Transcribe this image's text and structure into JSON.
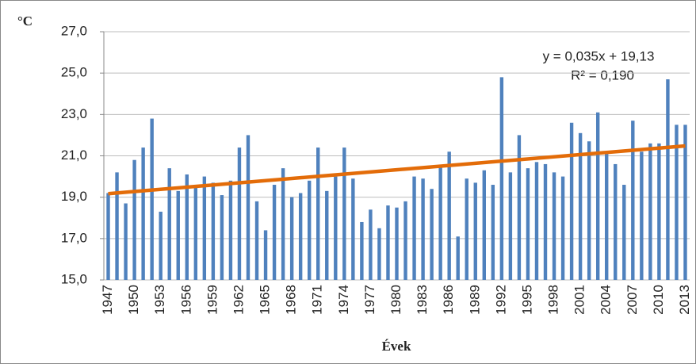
{
  "chart_data": {
    "type": "bar",
    "y_axis_label": "°C",
    "x_axis_label": "Évek",
    "annotations": [
      "y = 0,035x + 19,13",
      "R² = 0,190"
    ],
    "categories": [
      "1947",
      null,
      null,
      "1950",
      null,
      null,
      "1953",
      null,
      null,
      "1956",
      null,
      null,
      "1959",
      null,
      null,
      "1962",
      null,
      null,
      "1965",
      null,
      null,
      "1968",
      null,
      null,
      "1971",
      null,
      null,
      "1974",
      null,
      null,
      "1977",
      null,
      null,
      "1980",
      null,
      null,
      "1983",
      null,
      null,
      "1986",
      null,
      null,
      "1989",
      null,
      null,
      "1992",
      null,
      null,
      "1995",
      null,
      null,
      "1998",
      null,
      null,
      "2001",
      null,
      null,
      "2004",
      null,
      null,
      "2007",
      null,
      null,
      "2010",
      null,
      null,
      "2013"
    ],
    "values": [
      19.2,
      20.2,
      18.7,
      20.8,
      21.4,
      22.8,
      18.3,
      20.4,
      19.3,
      20.1,
      19.5,
      20.0,
      19.7,
      19.1,
      19.8,
      21.4,
      22.0,
      18.8,
      17.4,
      19.6,
      20.4,
      19.0,
      19.2,
      19.8,
      21.4,
      19.3,
      20.0,
      21.4,
      19.9,
      17.8,
      18.4,
      17.5,
      18.6,
      18.5,
      18.8,
      20.0,
      19.9,
      19.4,
      20.5,
      21.2,
      17.1,
      19.9,
      19.7,
      20.3,
      19.6,
      24.8,
      20.2,
      22.0,
      20.4,
      20.7,
      20.6,
      20.2,
      20.0,
      22.6,
      22.1,
      21.7,
      23.1,
      21.2,
      20.6,
      19.6,
      22.7,
      21.2,
      21.6,
      21.6,
      24.7,
      22.5,
      22.5
    ],
    "color": "#4f81bd",
    "trendline": {
      "values": [
        19.17,
        21.48
      ],
      "color": "#e36c09"
    },
    "ylim": [
      15,
      27
    ],
    "yticks": [
      {
        "value": 15,
        "label": "15,0"
      },
      {
        "value": 17,
        "label": "17,0"
      },
      {
        "value": 19,
        "label": "19,0"
      },
      {
        "value": 21,
        "label": "21,0"
      },
      {
        "value": 23,
        "label": "23,0"
      },
      {
        "value": 25,
        "label": "25,0"
      },
      {
        "value": 27,
        "label": "27,0"
      }
    ],
    "grid": true
  }
}
